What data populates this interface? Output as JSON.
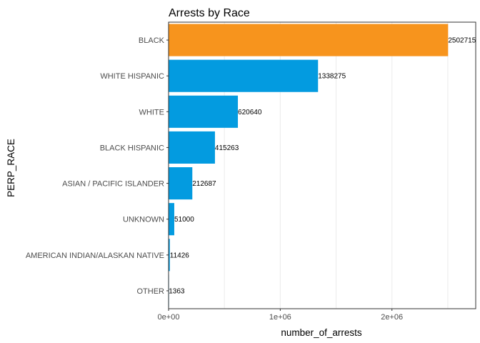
{
  "chart_data": {
    "type": "bar",
    "orientation": "horizontal",
    "title": "Arrests by Race",
    "xlabel": "number_of_arrests",
    "ylabel": "PERP_RACE",
    "categories": [
      "BLACK",
      "WHITE HISPANIC",
      "WHITE",
      "BLACK HISPANIC",
      "ASIAN / PACIFIC ISLANDER",
      "UNKNOWN",
      "AMERICAN INDIAN/ALASKAN NATIVE",
      "OTHER"
    ],
    "values": [
      2502715,
      1338275,
      620640,
      415263,
      212687,
      51000,
      11426,
      1363
    ],
    "data_labels": [
      "2502715",
      "1338275",
      "620640",
      "415263",
      "212687",
      "51000",
      "11426",
      "1363"
    ],
    "highlight_category": "BLACK",
    "colors": {
      "highlight": "#F7941D",
      "default": "#039BE0"
    },
    "xlim": [
      0,
      2750000
    ],
    "x_ticks": [
      0,
      1000000,
      2000000
    ],
    "x_tick_labels": [
      "0e+00",
      "1e+06",
      "2e+06"
    ],
    "grid": true,
    "legend": "none"
  }
}
